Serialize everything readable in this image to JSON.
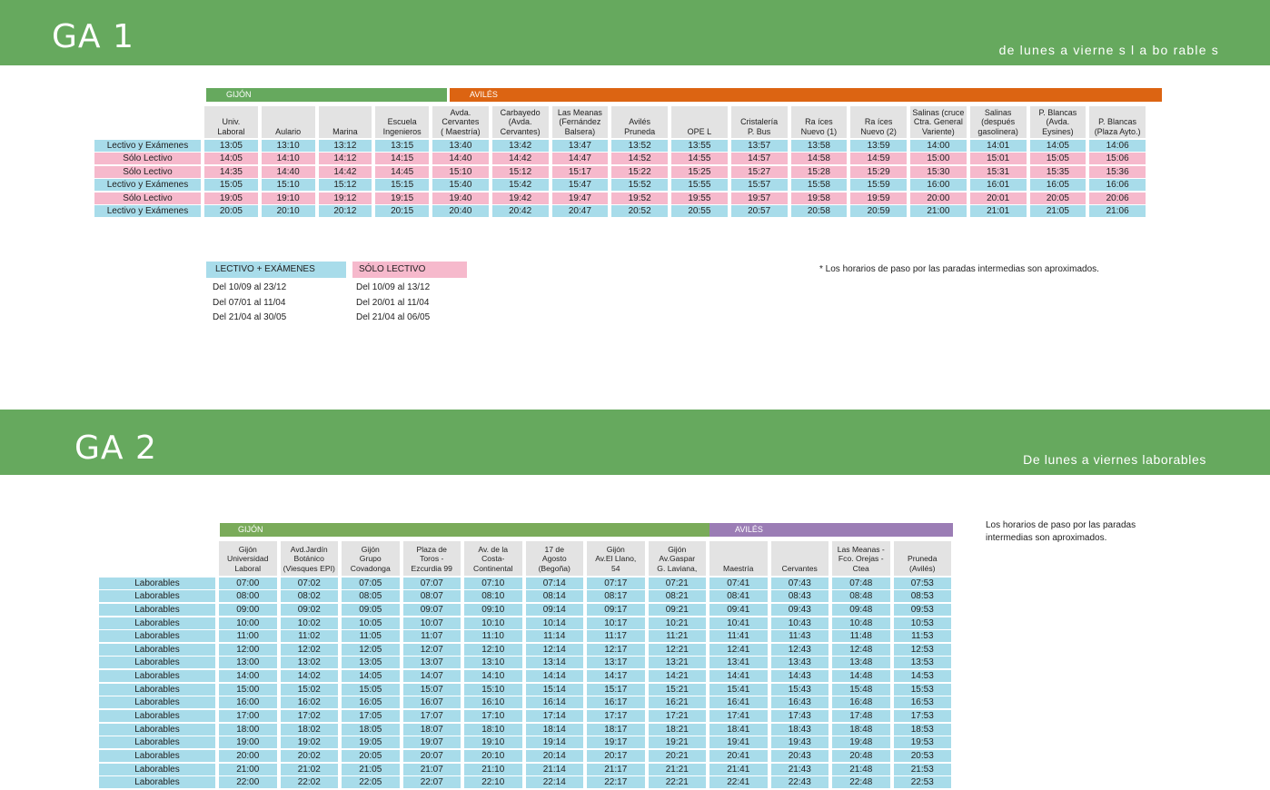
{
  "ga1": {
    "code": "GA 1",
    "days": "de lunes    a vierne  s l a bo rable  s",
    "groups": [
      {
        "label": "GIJÓN",
        "color": "#66a95e"
      },
      {
        "label": "AVILÉS",
        "color": "#dc6412"
      }
    ],
    "stops": [
      "Univ.\nLaboral",
      "Aulario",
      "Marina",
      "Escuela\nIngenieros",
      "Avda.\nCervantes\n( Maestría)",
      "Carbayedo\n(Avda.\nCervantes)",
      "Las Meanas\n(Fernández\nBalsera)",
      "Avilés\nPruneda",
      "OPE L",
      "Cristalería\nP. Bus",
      "Ra íces\nNuevo (1)",
      "Ra íces\nNuevo (2)",
      "Salinas (cruce\nCtra. General\nVariente)",
      "Salinas\n(después\ngasolinera)",
      "P. Blancas\n(Avda.\nEysines)",
      "P. Blancas\n(Plaza Ayto.)"
    ],
    "rows": [
      {
        "label": "Lectivo y Exámenes",
        "type": "blue",
        "times": [
          "13:05",
          "13:10",
          "13:12",
          "13:15",
          "13:40",
          "13:42",
          "13:47",
          "13:52",
          "13:55",
          "13:57",
          "13:58",
          "13:59",
          "14:00",
          "14:01",
          "14:05",
          "14:06"
        ]
      },
      {
        "label": "Sólo Lectivo",
        "type": "pink",
        "times": [
          "14:05",
          "14:10",
          "14:12",
          "14:15",
          "14:40",
          "14:42",
          "14:47",
          "14:52",
          "14:55",
          "14:57",
          "14:58",
          "14:59",
          "15:00",
          "15:01",
          "15:05",
          "15:06"
        ]
      },
      {
        "label": "Sólo Lectivo",
        "type": "pink",
        "times": [
          "14:35",
          "14:40",
          "14:42",
          "14:45",
          "15:10",
          "15:12",
          "15:17",
          "15:22",
          "15:25",
          "15:27",
          "15:28",
          "15:29",
          "15:30",
          "15:31",
          "15:35",
          "15:36"
        ]
      },
      {
        "label": "Lectivo y Exámenes",
        "type": "blue",
        "times": [
          "15:05",
          "15:10",
          "15:12",
          "15:15",
          "15:40",
          "15:42",
          "15:47",
          "15:52",
          "15:55",
          "15:57",
          "15:58",
          "15:59",
          "16:00",
          "16:01",
          "16:05",
          "16:06"
        ]
      },
      {
        "label": "Sólo Lectivo",
        "type": "pink",
        "times": [
          "19:05",
          "19:10",
          "19:12",
          "19:15",
          "19:40",
          "19:42",
          "19:47",
          "19:52",
          "19:55",
          "19:57",
          "19:58",
          "19:59",
          "20:00",
          "20:01",
          "20:05",
          "20:06"
        ]
      },
      {
        "label": "Lectivo y Exámenes",
        "type": "blue",
        "times": [
          "20:05",
          "20:10",
          "20:12",
          "20:15",
          "20:40",
          "20:42",
          "20:47",
          "20:52",
          "20:55",
          "20:57",
          "20:58",
          "20:59",
          "21:00",
          "21:01",
          "21:05",
          "21:06"
        ]
      }
    ],
    "legend": {
      "lectivo_examenes": {
        "title": "LECTIVO + EXÁMENES",
        "color": "#a8dcea",
        "dates": [
          "Del 10/09 al 23/12",
          "Del 07/01 al 11/04",
          "Del 21/04 al 30/05"
        ]
      },
      "solo_lectivo": {
        "title": "SÓLO LECTIVO",
        "color": "#f6b9cc",
        "dates": [
          "Del 10/09 al 13/12",
          "Del 20/01 al 11/04",
          "Del 21/04 al 06/05"
        ]
      }
    },
    "note": "*   Los horarios de paso por las paradas intermedias son aproximados."
  },
  "ga2": {
    "code": "GA  2",
    "days": "De lunes a viernes laborables",
    "groups": [
      {
        "label": "GIJÓN",
        "color": "#7aab5a"
      },
      {
        "label": "AVILÉS",
        "color": "#9b7db5"
      }
    ],
    "stops": [
      "Gijón\nUniversidad\nLaboral",
      "Avd.Jardín\nBotánico\n(Viesques EPI)",
      "Gijón\nGrupo\nCovadonga",
      "Plaza de\nToros -\nEzcurdia 99",
      "Av. de la\nCosta-\nContinental",
      "17 de\nAgosto\n(Begoña)",
      "Gijón\nAv.El Llano,\n54",
      "Gijón\nAv.Gaspar\nG. Laviana,",
      "Maestría",
      "Cervantes",
      "Las Meanas -\nFco. Orejas -\nCtea",
      "Pruneda\n(Avilés)"
    ],
    "row_label": "Laborables",
    "rows": [
      [
        "07:00",
        "07:02",
        "07:05",
        "07:07",
        "07:10",
        "07:14",
        "07:17",
        "07:21",
        "07:41",
        "07:43",
        "07:48",
        "07:53"
      ],
      [
        "08:00",
        "08:02",
        "08:05",
        "08:07",
        "08:10",
        "08:14",
        "08:17",
        "08:21",
        "08:41",
        "08:43",
        "08:48",
        "08:53"
      ],
      [
        "09:00",
        "09:02",
        "09:05",
        "09:07",
        "09:10",
        "09:14",
        "09:17",
        "09:21",
        "09:41",
        "09:43",
        "09:48",
        "09:53"
      ],
      [
        "10:00",
        "10:02",
        "10:05",
        "10:07",
        "10:10",
        "10:14",
        "10:17",
        "10:21",
        "10:41",
        "10:43",
        "10:48",
        "10:53"
      ],
      [
        "11:00",
        "11:02",
        "11:05",
        "11:07",
        "11:10",
        "11:14",
        "11:17",
        "11:21",
        "11:41",
        "11:43",
        "11:48",
        "11:53"
      ],
      [
        "12:00",
        "12:02",
        "12:05",
        "12:07",
        "12:10",
        "12:14",
        "12:17",
        "12:21",
        "12:41",
        "12:43",
        "12:48",
        "12:53"
      ],
      [
        "13:00",
        "13:02",
        "13:05",
        "13:07",
        "13:10",
        "13:14",
        "13:17",
        "13:21",
        "13:41",
        "13:43",
        "13:48",
        "13:53"
      ],
      [
        "14:00",
        "14:02",
        "14:05",
        "14:07",
        "14:10",
        "14:14",
        "14:17",
        "14:21",
        "14:41",
        "14:43",
        "14:48",
        "14:53"
      ],
      [
        "15:00",
        "15:02",
        "15:05",
        "15:07",
        "15:10",
        "15:14",
        "15:17",
        "15:21",
        "15:41",
        "15:43",
        "15:48",
        "15:53"
      ],
      [
        "16:00",
        "16:02",
        "16:05",
        "16:07",
        "16:10",
        "16:14",
        "16:17",
        "16:21",
        "16:41",
        "16:43",
        "16:48",
        "16:53"
      ],
      [
        "17:00",
        "17:02",
        "17:05",
        "17:07",
        "17:10",
        "17:14",
        "17:17",
        "17:21",
        "17:41",
        "17:43",
        "17:48",
        "17:53"
      ],
      [
        "18:00",
        "18:02",
        "18:05",
        "18:07",
        "18:10",
        "18:14",
        "18:17",
        "18:21",
        "18:41",
        "18:43",
        "18:48",
        "18:53"
      ],
      [
        "19:00",
        "19:02",
        "19:05",
        "19:07",
        "19:10",
        "19:14",
        "19:17",
        "19:21",
        "19:41",
        "19:43",
        "19:48",
        "19:53"
      ],
      [
        "20:00",
        "20:02",
        "20:05",
        "20:07",
        "20:10",
        "20:14",
        "20:17",
        "20:21",
        "20:41",
        "20:43",
        "20:48",
        "20:53"
      ],
      [
        "21:00",
        "21:02",
        "21:05",
        "21:07",
        "21:10",
        "21:14",
        "21:17",
        "21:21",
        "21:41",
        "21:43",
        "21:48",
        "21:53"
      ],
      [
        "22:00",
        "22:02",
        "22:05",
        "22:07",
        "22:10",
        "22:14",
        "22:17",
        "22:21",
        "22:41",
        "22:43",
        "22:48",
        "22:53"
      ]
    ],
    "note": "Los horarios de paso por las paradas\n intermedias son aproximados."
  },
  "colors": {
    "banner": "#66a95e",
    "lectivo_examenes": "#a8dcea",
    "solo_lectivo": "#f6b9cc",
    "laborables": "#a8dcea",
    "header_cell": "#e3e3e3"
  }
}
